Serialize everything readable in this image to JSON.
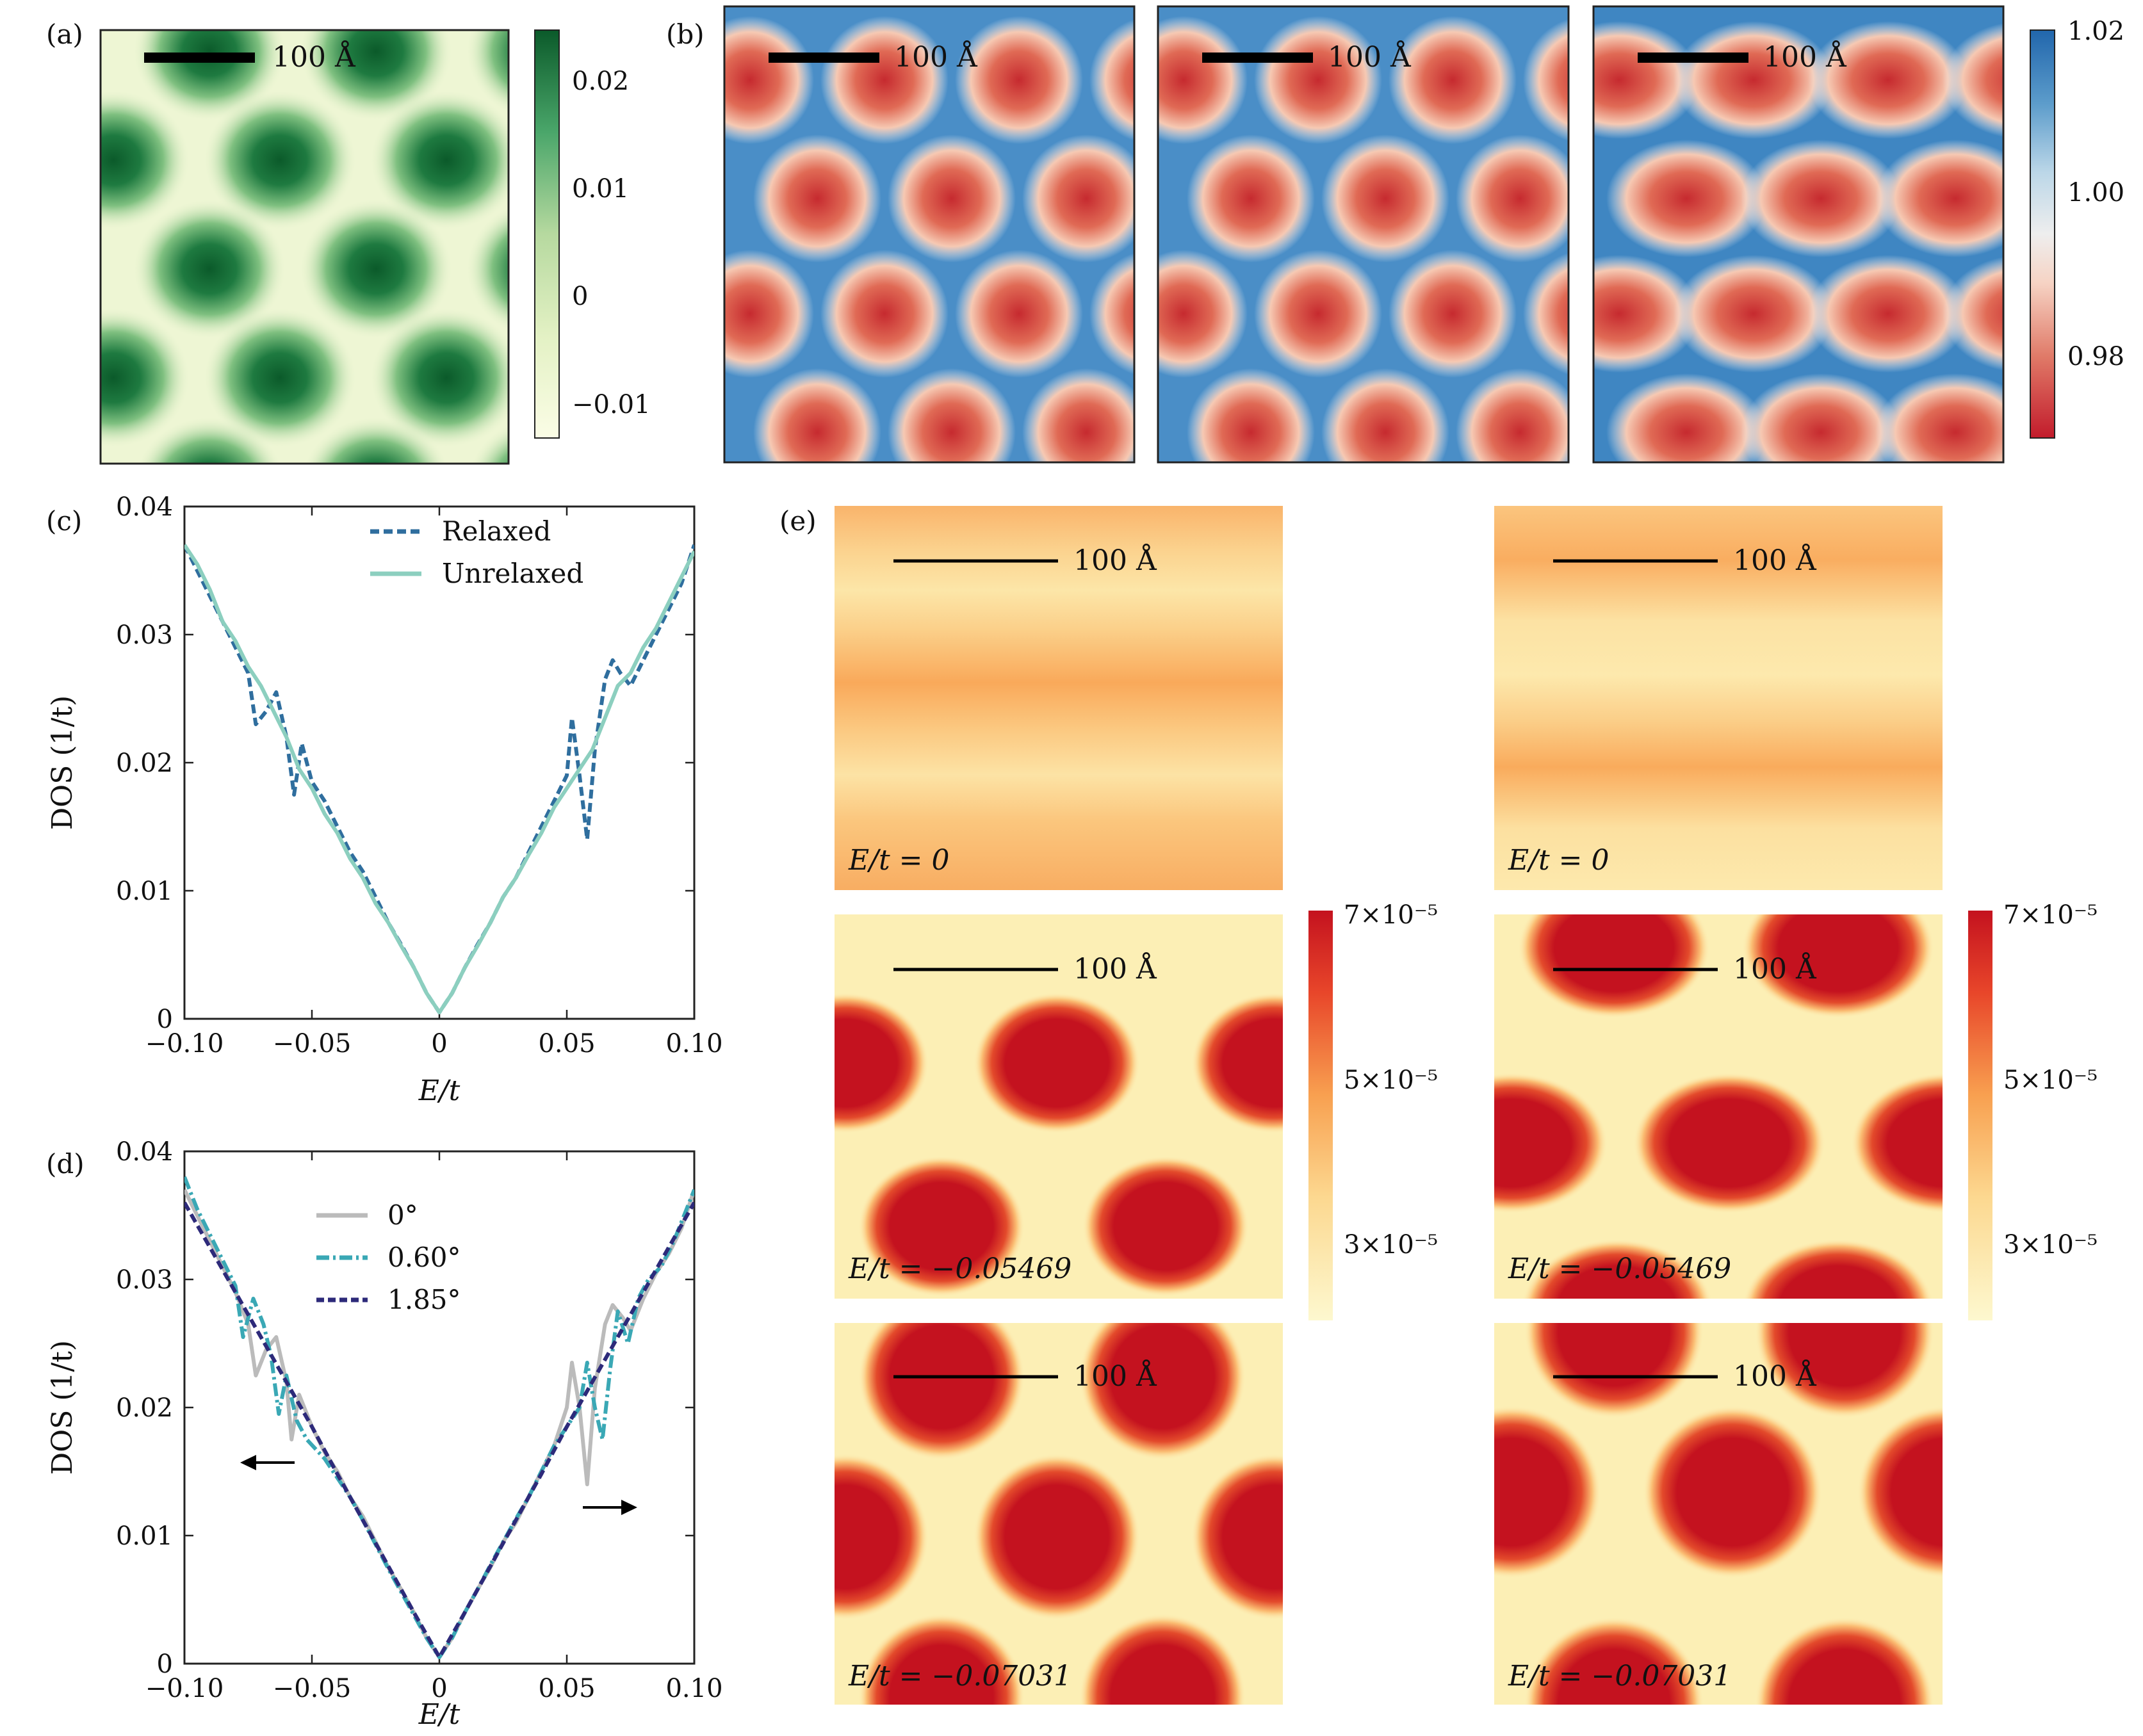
{
  "panel_letters": {
    "a": "(a)",
    "b": "(b)",
    "c": "(c)",
    "d": "(d)",
    "e": "(e)"
  },
  "scale_bar_label": "100 Å",
  "colormaps": {
    "green": [
      "#fbfde6",
      "#e6f2c8",
      "#bcdca4",
      "#7fc080",
      "#3a9a5a",
      "#1e7a40",
      "#0b5a2a"
    ],
    "blue_red": [
      "#b2182b",
      "#d6604d",
      "#f4a582",
      "#f7f7f7",
      "#92c5de",
      "#4393c3",
      "#2166ac"
    ],
    "ylorrd": [
      "#fdf8cf",
      "#fde9a8",
      "#fcd08a",
      "#f9ab5c",
      "#f57f3f",
      "#e34a2b",
      "#c4121f"
    ]
  },
  "colorbars": {
    "a": {
      "ticks": [
        "0.02",
        "0.01",
        "0",
        "−0.01"
      ]
    },
    "b": {
      "ticks": [
        "1.02",
        "1.00",
        "0.98"
      ]
    },
    "e": {
      "ticks": [
        "7×10⁻⁵",
        "5×10⁻⁵",
        "3×10⁻⁵"
      ]
    }
  },
  "energy_labels": {
    "e1": "E/t = 0",
    "e2": "E/t = −0.05469",
    "e3": "E/t = −0.07031"
  },
  "chart_data": [
    {
      "panel": "c",
      "type": "line",
      "xlabel": "E/t",
      "ylabel": "DOS (1/t)",
      "xlim": [
        -0.1,
        0.1
      ],
      "ylim": [
        0,
        0.04
      ],
      "x_ticks": [
        "−0.10",
        "−0.05",
        "0",
        "0.05",
        "0.10"
      ],
      "y_ticks": [
        "0",
        "0.01",
        "0.02",
        "0.03",
        "0.04"
      ],
      "legend_position": "top-right",
      "series": [
        {
          "name": "Relaxed",
          "color": "#2f6e9e",
          "style": "dashed",
          "points": [
            [
              -0.1,
              0.037
            ],
            [
              -0.095,
              0.035
            ],
            [
              -0.09,
              0.033
            ],
            [
              -0.085,
              0.031
            ],
            [
              -0.08,
              0.029
            ],
            [
              -0.075,
              0.027
            ],
            [
              -0.072,
              0.023
            ],
            [
              -0.068,
              0.024
            ],
            [
              -0.064,
              0.0255
            ],
            [
              -0.06,
              0.022
            ],
            [
              -0.057,
              0.0175
            ],
            [
              -0.054,
              0.0215
            ],
            [
              -0.05,
              0.0185
            ],
            [
              -0.045,
              0.017
            ],
            [
              -0.04,
              0.015
            ],
            [
              -0.035,
              0.013
            ],
            [
              -0.03,
              0.0115
            ],
            [
              -0.025,
              0.0095
            ],
            [
              -0.02,
              0.0075
            ],
            [
              -0.015,
              0.0058
            ],
            [
              -0.01,
              0.004
            ],
            [
              -0.005,
              0.002
            ],
            [
              0,
              0.0005
            ],
            [
              0.005,
              0.002
            ],
            [
              0.01,
              0.004
            ],
            [
              0.015,
              0.0058
            ],
            [
              0.02,
              0.0075
            ],
            [
              0.025,
              0.0095
            ],
            [
              0.03,
              0.011
            ],
            [
              0.035,
              0.013
            ],
            [
              0.04,
              0.015
            ],
            [
              0.045,
              0.017
            ],
            [
              0.05,
              0.019
            ],
            [
              0.052,
              0.0235
            ],
            [
              0.055,
              0.019
            ],
            [
              0.058,
              0.014
            ],
            [
              0.061,
              0.021
            ],
            [
              0.065,
              0.0265
            ],
            [
              0.068,
              0.028
            ],
            [
              0.071,
              0.027
            ],
            [
              0.075,
              0.026
            ],
            [
              0.08,
              0.028
            ],
            [
              0.085,
              0.03
            ],
            [
              0.09,
              0.032
            ],
            [
              0.095,
              0.034
            ],
            [
              0.1,
              0.037
            ]
          ]
        },
        {
          "name": "Unrelaxed",
          "color": "#8ccfbf",
          "style": "solid",
          "points": [
            [
              -0.1,
              0.037
            ],
            [
              -0.095,
              0.0355
            ],
            [
              -0.09,
              0.0335
            ],
            [
              -0.085,
              0.031
            ],
            [
              -0.08,
              0.0295
            ],
            [
              -0.075,
              0.0275
            ],
            [
              -0.07,
              0.026
            ],
            [
              -0.065,
              0.024
            ],
            [
              -0.06,
              0.022
            ],
            [
              -0.055,
              0.0195
            ],
            [
              -0.05,
              0.018
            ],
            [
              -0.045,
              0.016
            ],
            [
              -0.04,
              0.0145
            ],
            [
              -0.035,
              0.0125
            ],
            [
              -0.03,
              0.011
            ],
            [
              -0.025,
              0.009
            ],
            [
              -0.02,
              0.0075
            ],
            [
              -0.015,
              0.0057
            ],
            [
              -0.01,
              0.004
            ],
            [
              -0.005,
              0.002
            ],
            [
              0,
              0.0005
            ],
            [
              0.005,
              0.002
            ],
            [
              0.01,
              0.004
            ],
            [
              0.015,
              0.0057
            ],
            [
              0.02,
              0.0075
            ],
            [
              0.025,
              0.0095
            ],
            [
              0.03,
              0.011
            ],
            [
              0.035,
              0.0128
            ],
            [
              0.04,
              0.0145
            ],
            [
              0.045,
              0.0165
            ],
            [
              0.05,
              0.018
            ],
            [
              0.055,
              0.0195
            ],
            [
              0.06,
              0.021
            ],
            [
              0.065,
              0.0235
            ],
            [
              0.07,
              0.026
            ],
            [
              0.075,
              0.027
            ],
            [
              0.08,
              0.029
            ],
            [
              0.085,
              0.0305
            ],
            [
              0.09,
              0.0325
            ],
            [
              0.095,
              0.0345
            ],
            [
              0.1,
              0.0365
            ]
          ]
        }
      ]
    },
    {
      "panel": "d",
      "type": "line",
      "xlabel": "E/t",
      "ylabel": "DOS (1/t)",
      "xlim": [
        -0.1,
        0.1
      ],
      "ylim": [
        0,
        0.04
      ],
      "x_ticks": [
        "−0.10",
        "−0.05",
        "0",
        "0.05",
        "0.10"
      ],
      "y_ticks": [
        "0",
        "0.01",
        "0.02",
        "0.03",
        "0.04"
      ],
      "legend_position": "top-center",
      "series": [
        {
          "name": "0°",
          "color": "#bbbbbb",
          "style": "solid",
          "points": [
            [
              -0.1,
              0.037
            ],
            [
              -0.095,
              0.035
            ],
            [
              -0.09,
              0.033
            ],
            [
              -0.085,
              0.031
            ],
            [
              -0.08,
              0.029
            ],
            [
              -0.075,
              0.0265
            ],
            [
              -0.072,
              0.0225
            ],
            [
              -0.068,
              0.0245
            ],
            [
              -0.064,
              0.0255
            ],
            [
              -0.06,
              0.022
            ],
            [
              -0.058,
              0.0175
            ],
            [
              -0.055,
              0.021
            ],
            [
              -0.05,
              0.0185
            ],
            [
              -0.045,
              0.0165
            ],
            [
              -0.04,
              0.015
            ],
            [
              -0.035,
              0.013
            ],
            [
              -0.03,
              0.0115
            ],
            [
              -0.025,
              0.0095
            ],
            [
              -0.02,
              0.0075
            ],
            [
              -0.015,
              0.0058
            ],
            [
              -0.01,
              0.004
            ],
            [
              -0.005,
              0.002
            ],
            [
              0,
              0.0005
            ],
            [
              0.005,
              0.002
            ],
            [
              0.01,
              0.004
            ],
            [
              0.015,
              0.0058
            ],
            [
              0.02,
              0.0075
            ],
            [
              0.025,
              0.0095
            ],
            [
              0.03,
              0.011
            ],
            [
              0.035,
              0.013
            ],
            [
              0.04,
              0.015
            ],
            [
              0.045,
              0.017
            ],
            [
              0.05,
              0.02
            ],
            [
              0.052,
              0.0235
            ],
            [
              0.055,
              0.02
            ],
            [
              0.058,
              0.014
            ],
            [
              0.061,
              0.0215
            ],
            [
              0.065,
              0.0265
            ],
            [
              0.068,
              0.028
            ],
            [
              0.072,
              0.027
            ],
            [
              0.075,
              0.026
            ],
            [
              0.08,
              0.0285
            ],
            [
              0.085,
              0.0305
            ],
            [
              0.09,
              0.032
            ],
            [
              0.095,
              0.034
            ],
            [
              0.1,
              0.037
            ]
          ]
        },
        {
          "name": "0.60°",
          "color": "#3aa8b5",
          "style": "dashdot",
          "points": [
            [
              -0.1,
              0.038
            ],
            [
              -0.095,
              0.0355
            ],
            [
              -0.09,
              0.0335
            ],
            [
              -0.085,
              0.0315
            ],
            [
              -0.08,
              0.0295
            ],
            [
              -0.077,
              0.0255
            ],
            [
              -0.073,
              0.0285
            ],
            [
              -0.069,
              0.0265
            ],
            [
              -0.066,
              0.024
            ],
            [
              -0.063,
              0.0195
            ],
            [
              -0.06,
              0.0225
            ],
            [
              -0.056,
              0.019
            ],
            [
              -0.052,
              0.0175
            ],
            [
              -0.045,
              0.016
            ],
            [
              -0.04,
              0.0145
            ],
            [
              -0.035,
              0.013
            ],
            [
              -0.03,
              0.0112
            ],
            [
              -0.025,
              0.0093
            ],
            [
              -0.02,
              0.0074
            ],
            [
              -0.015,
              0.0056
            ],
            [
              -0.01,
              0.0038
            ],
            [
              -0.005,
              0.002
            ],
            [
              0,
              0.0005
            ],
            [
              0.005,
              0.002
            ],
            [
              0.01,
              0.004
            ],
            [
              0.015,
              0.0058
            ],
            [
              0.02,
              0.0077
            ],
            [
              0.025,
              0.0095
            ],
            [
              0.03,
              0.0113
            ],
            [
              0.035,
              0.013
            ],
            [
              0.04,
              0.015
            ],
            [
              0.045,
              0.017
            ],
            [
              0.05,
              0.0185
            ],
            [
              0.055,
              0.02
            ],
            [
              0.058,
              0.0235
            ],
            [
              0.061,
              0.02
            ],
            [
              0.064,
              0.0175
            ],
            [
              0.067,
              0.023
            ],
            [
              0.07,
              0.0275
            ],
            [
              0.074,
              0.025
            ],
            [
              0.078,
              0.0285
            ],
            [
              0.082,
              0.03
            ],
            [
              0.087,
              0.031
            ],
            [
              0.092,
              0.033
            ],
            [
              0.1,
              0.037
            ]
          ]
        },
        {
          "name": "1.85°",
          "color": "#2d2a7a",
          "style": "dashed",
          "points": [
            [
              -0.1,
              0.036
            ],
            [
              -0.09,
              0.0325
            ],
            [
              -0.08,
              0.029
            ],
            [
              -0.07,
              0.0255
            ],
            [
              -0.06,
              0.022
            ],
            [
              -0.05,
              0.0185
            ],
            [
              -0.04,
              0.0148
            ],
            [
              -0.03,
              0.0112
            ],
            [
              -0.02,
              0.0076
            ],
            [
              -0.01,
              0.004
            ],
            [
              0,
              0.0005
            ],
            [
              0.01,
              0.004
            ],
            [
              0.02,
              0.0076
            ],
            [
              0.03,
              0.0112
            ],
            [
              0.04,
              0.0148
            ],
            [
              0.05,
              0.0185
            ],
            [
              0.06,
              0.022
            ],
            [
              0.07,
              0.0255
            ],
            [
              0.08,
              0.029
            ],
            [
              0.09,
              0.0325
            ],
            [
              0.1,
              0.036
            ]
          ]
        }
      ],
      "annotations": [
        "arrow-left",
        "arrow-right"
      ]
    }
  ]
}
